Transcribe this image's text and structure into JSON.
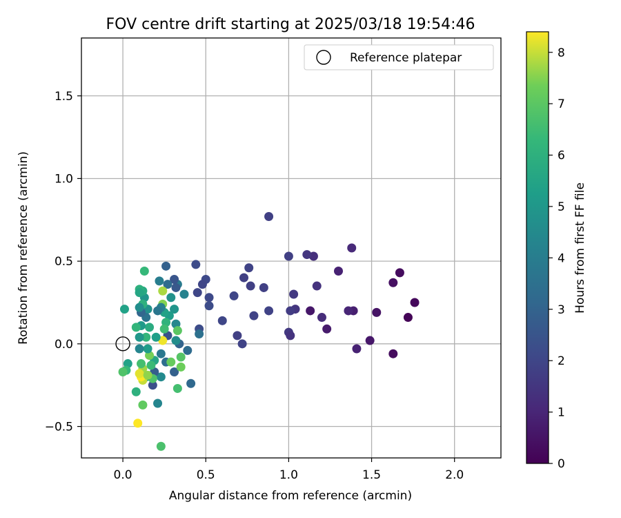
{
  "chart_data": {
    "type": "scatter",
    "title": "FOV centre drift starting at 2025/03/18 19:54:46",
    "xlabel": "Angular distance from reference (arcmin)",
    "ylabel": "Rotation from reference (arcmin)",
    "xlim": [
      -0.25,
      2.28
    ],
    "ylim": [
      -0.69,
      1.85
    ],
    "xticks": [
      0.0,
      0.5,
      1.0,
      1.5,
      2.0
    ],
    "xtick_labels": [
      "0.0",
      "0.5",
      "1.0",
      "1.5",
      "2.0"
    ],
    "yticks": [
      -0.5,
      0.0,
      0.5,
      1.0,
      1.5
    ],
    "ytick_labels": [
      "−0.5",
      "0.0",
      "0.5",
      "1.0",
      "1.5"
    ],
    "grid": true,
    "legend": {
      "label": "Reference platepar",
      "placement": "top-right"
    },
    "reference_point": {
      "x": 0.0,
      "y": 0.0
    },
    "colorbar": {
      "label": "Hours from first FF file",
      "range": [
        0,
        8.4
      ],
      "ticks": [
        0,
        1,
        2,
        3,
        4,
        5,
        6,
        7,
        8
      ],
      "tick_labels": [
        "0",
        "1",
        "2",
        "3",
        "4",
        "5",
        "6",
        "7",
        "8"
      ],
      "colormap": "viridis"
    },
    "points": [
      {
        "x": 1.67,
        "y": 0.43,
        "c": 0.3
      },
      {
        "x": 1.76,
        "y": 0.25,
        "c": 0.2
      },
      {
        "x": 1.63,
        "y": 0.37,
        "c": 0.4
      },
      {
        "x": 1.72,
        "y": 0.16,
        "c": 0.1
      },
      {
        "x": 1.63,
        "y": -0.06,
        "c": 0.3
      },
      {
        "x": 1.53,
        "y": 0.19,
        "c": 0.5
      },
      {
        "x": 1.49,
        "y": 0.02,
        "c": 0.6
      },
      {
        "x": 1.41,
        "y": -0.03,
        "c": 0.9
      },
      {
        "x": 1.38,
        "y": 0.58,
        "c": 1.1
      },
      {
        "x": 1.39,
        "y": 0.2,
        "c": 0.8
      },
      {
        "x": 1.36,
        "y": 0.2,
        "c": 1.0
      },
      {
        "x": 1.3,
        "y": 0.44,
        "c": 0.9
      },
      {
        "x": 1.23,
        "y": 0.09,
        "c": 0.7
      },
      {
        "x": 1.2,
        "y": 0.16,
        "c": 1.2
      },
      {
        "x": 1.17,
        "y": 0.35,
        "c": 1.4
      },
      {
        "x": 1.15,
        "y": 0.53,
        "c": 1.3
      },
      {
        "x": 1.13,
        "y": 0.2,
        "c": 0.6
      },
      {
        "x": 1.11,
        "y": 0.54,
        "c": 1.5
      },
      {
        "x": 1.03,
        "y": 0.3,
        "c": 1.6
      },
      {
        "x": 1.04,
        "y": 0.21,
        "c": 1.5
      },
      {
        "x": 1.01,
        "y": 0.2,
        "c": 1.7
      },
      {
        "x": 1.0,
        "y": 0.53,
        "c": 1.8
      },
      {
        "x": 1.0,
        "y": 0.07,
        "c": 1.6
      },
      {
        "x": 1.01,
        "y": 0.05,
        "c": 1.4
      },
      {
        "x": 0.88,
        "y": 0.77,
        "c": 1.8
      },
      {
        "x": 0.88,
        "y": 0.2,
        "c": 1.9
      },
      {
        "x": 0.85,
        "y": 0.34,
        "c": 1.8
      },
      {
        "x": 0.79,
        "y": 0.17,
        "c": 1.9
      },
      {
        "x": 0.76,
        "y": 0.46,
        "c": 1.9
      },
      {
        "x": 0.77,
        "y": 0.35,
        "c": 1.8
      },
      {
        "x": 0.73,
        "y": 0.4,
        "c": 1.8
      },
      {
        "x": 0.72,
        "y": 0.0,
        "c": 1.9
      },
      {
        "x": 0.69,
        "y": 0.05,
        "c": 1.8
      },
      {
        "x": 0.67,
        "y": 0.29,
        "c": 2.0
      },
      {
        "x": 0.6,
        "y": 0.14,
        "c": 2.0
      },
      {
        "x": 0.52,
        "y": 0.28,
        "c": 2.1
      },
      {
        "x": 0.52,
        "y": 0.23,
        "c": 2.2
      },
      {
        "x": 0.5,
        "y": 0.39,
        "c": 2.1
      },
      {
        "x": 0.48,
        "y": 0.36,
        "c": 2.0
      },
      {
        "x": 0.45,
        "y": 0.31,
        "c": 2.0
      },
      {
        "x": 0.44,
        "y": 0.48,
        "c": 2.2
      },
      {
        "x": 0.46,
        "y": 0.09,
        "c": 2.2
      },
      {
        "x": 0.46,
        "y": 0.06,
        "c": 3.5
      },
      {
        "x": 0.41,
        "y": -0.24,
        "c": 3.2
      },
      {
        "x": 0.39,
        "y": -0.04,
        "c": 3.3
      },
      {
        "x": 0.37,
        "y": 0.3,
        "c": 4.2
      },
      {
        "x": 0.33,
        "y": 0.36,
        "c": 3.9
      },
      {
        "x": 0.34,
        "y": 0.0,
        "c": 3.0
      },
      {
        "x": 0.32,
        "y": 0.34,
        "c": 2.6
      },
      {
        "x": 0.31,
        "y": 0.39,
        "c": 2.5
      },
      {
        "x": 0.32,
        "y": 0.12,
        "c": 4.4
      },
      {
        "x": 0.32,
        "y": 0.02,
        "c": 4.6
      },
      {
        "x": 0.31,
        "y": -0.17,
        "c": 2.9
      },
      {
        "x": 0.31,
        "y": 0.21,
        "c": 4.9
      },
      {
        "x": 0.29,
        "y": 0.28,
        "c": 4.8
      },
      {
        "x": 0.28,
        "y": 0.17,
        "c": 5.2
      },
      {
        "x": 0.27,
        "y": 0.36,
        "c": 3.3
      },
      {
        "x": 0.26,
        "y": 0.47,
        "c": 2.9
      },
      {
        "x": 0.27,
        "y": 0.05,
        "c": 2.4
      },
      {
        "x": 0.26,
        "y": 0.13,
        "c": 6.1
      },
      {
        "x": 0.26,
        "y": -0.11,
        "c": 3.4
      },
      {
        "x": 0.25,
        "y": 0.19,
        "c": 5.4
      },
      {
        "x": 0.25,
        "y": 0.09,
        "c": 6.5
      },
      {
        "x": 0.24,
        "y": 0.24,
        "c": 7.5
      },
      {
        "x": 0.24,
        "y": 0.32,
        "c": 7.8
      },
      {
        "x": 0.24,
        "y": 0.02,
        "c": 8.3
      },
      {
        "x": 0.23,
        "y": 0.22,
        "c": 4.1
      },
      {
        "x": 0.23,
        "y": -0.06,
        "c": 3.8
      },
      {
        "x": 0.23,
        "y": -0.2,
        "c": 4.5
      },
      {
        "x": 0.22,
        "y": 0.38,
        "c": 4.0
      },
      {
        "x": 0.21,
        "y": 0.2,
        "c": 3.7
      },
      {
        "x": 0.21,
        "y": -0.36,
        "c": 4.3
      },
      {
        "x": 0.23,
        "y": -0.62,
        "c": 6.7
      },
      {
        "x": 0.2,
        "y": 0.04,
        "c": 5.3
      },
      {
        "x": 0.19,
        "y": -0.1,
        "c": 5.6
      },
      {
        "x": 0.19,
        "y": -0.17,
        "c": 2.8
      },
      {
        "x": 0.18,
        "y": -0.25,
        "c": 2.3
      },
      {
        "x": 0.18,
        "y": -0.21,
        "c": 6.8
      },
      {
        "x": 0.17,
        "y": -0.13,
        "c": 6.4
      },
      {
        "x": 0.16,
        "y": 0.1,
        "c": 5.8
      },
      {
        "x": 0.16,
        "y": -0.07,
        "c": 7.4
      },
      {
        "x": 0.15,
        "y": 0.21,
        "c": 4.8
      },
      {
        "x": 0.15,
        "y": -0.03,
        "c": 5.2
      },
      {
        "x": 0.14,
        "y": 0.16,
        "c": 3.6
      },
      {
        "x": 0.14,
        "y": 0.04,
        "c": 6.2
      },
      {
        "x": 0.14,
        "y": -0.2,
        "c": 5.5
      },
      {
        "x": 0.13,
        "y": 0.28,
        "c": 4.9
      },
      {
        "x": 0.13,
        "y": 0.44,
        "c": 6.3
      },
      {
        "x": 0.12,
        "y": 0.32,
        "c": 5.7
      },
      {
        "x": 0.12,
        "y": 0.24,
        "c": 6.0
      },
      {
        "x": 0.12,
        "y": -0.15,
        "c": 7.7
      },
      {
        "x": 0.12,
        "y": -0.22,
        "c": 8.0
      },
      {
        "x": 0.12,
        "y": -0.37,
        "c": 7.1
      },
      {
        "x": 0.11,
        "y": 0.19,
        "c": 3.1
      },
      {
        "x": 0.11,
        "y": 0.11,
        "c": 5.1
      },
      {
        "x": 0.11,
        "y": -0.12,
        "c": 6.6
      },
      {
        "x": 0.11,
        "y": -0.2,
        "c": 8.4
      },
      {
        "x": 0.1,
        "y": 0.33,
        "c": 6.0
      },
      {
        "x": 0.1,
        "y": 0.31,
        "c": 5.6
      },
      {
        "x": 0.1,
        "y": 0.22,
        "c": 4.6
      },
      {
        "x": 0.1,
        "y": 0.04,
        "c": 5.0
      },
      {
        "x": 0.1,
        "y": -0.03,
        "c": 4.3
      },
      {
        "x": 0.1,
        "y": -0.18,
        "c": 8.2
      },
      {
        "x": 0.09,
        "y": -0.48,
        "c": 8.4
      },
      {
        "x": 0.08,
        "y": 0.1,
        "c": 6.2
      },
      {
        "x": 0.08,
        "y": -0.29,
        "c": 6.0
      },
      {
        "x": 0.03,
        "y": -0.12,
        "c": 5.4
      },
      {
        "x": 0.02,
        "y": -0.16,
        "c": 6.3
      },
      {
        "x": 0.01,
        "y": 0.21,
        "c": 5.4
      },
      {
        "x": 0.0,
        "y": -0.17,
        "c": 6.8
      },
      {
        "x": 0.29,
        "y": -0.11,
        "c": 7.2
      },
      {
        "x": 0.33,
        "y": 0.08,
        "c": 7.0
      },
      {
        "x": 0.35,
        "y": -0.08,
        "c": 6.9
      },
      {
        "x": 0.33,
        "y": -0.27,
        "c": 6.6
      },
      {
        "x": 0.35,
        "y": -0.14,
        "c": 7.3
      },
      {
        "x": 0.15,
        "y": -0.19,
        "c": 7.6
      }
    ]
  }
}
